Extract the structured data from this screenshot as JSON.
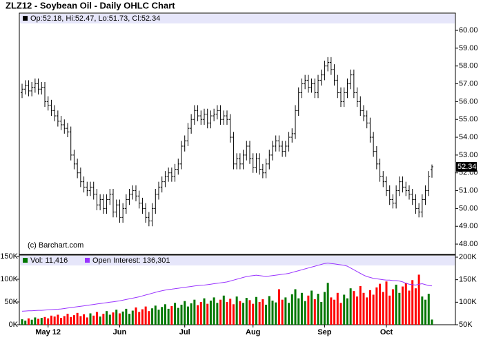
{
  "chart_data": [
    {
      "type": "ohlc",
      "title": "ZLZ12 - Soybean Oil - Daily OHLC Chart",
      "info": "Op:52.18, Hi:52.47, Lo:51.73, Cl:52.34",
      "copyright": "(c) Barchart.com",
      "last_label": "52.34",
      "color": "#000000",
      "categories": [
        null,
        null,
        null,
        null,
        null,
        null,
        null,
        null,
        "May 12",
        null,
        null,
        null,
        null,
        null,
        null,
        null,
        null,
        null,
        null,
        null,
        null,
        null,
        null,
        null,
        null,
        null,
        null,
        null,
        null,
        null,
        "Jun",
        null,
        null,
        null,
        null,
        null,
        null,
        null,
        null,
        null,
        null,
        null,
        null,
        null,
        null,
        null,
        null,
        null,
        null,
        null,
        "Jul",
        null,
        null,
        null,
        null,
        null,
        null,
        null,
        null,
        null,
        null,
        null,
        null,
        null,
        null,
        null,
        null,
        null,
        null,
        null,
        null,
        "Aug",
        null,
        null,
        null,
        null,
        null,
        null,
        null,
        null,
        null,
        null,
        null,
        null,
        null,
        null,
        null,
        null,
        null,
        null,
        null,
        null,
        null,
        "Sep",
        null,
        null,
        null,
        null,
        null,
        null,
        null,
        null,
        null,
        null,
        null,
        null,
        null,
        null,
        null,
        null,
        null,
        null,
        "Oct",
        null,
        null,
        null,
        null,
        null,
        null,
        null,
        null,
        null,
        null,
        null,
        null,
        null,
        null
      ],
      "open": [
        56.5,
        56.7,
        56.9,
        56.6,
        56.8,
        57.0,
        56.7,
        56.8,
        56.0,
        55.8,
        55.5,
        55.2,
        54.9,
        54.7,
        54.5,
        54.3,
        53.0,
        52.5,
        52.0,
        51.5,
        51.2,
        51.0,
        51.2,
        50.8,
        50.2,
        50.5,
        50.0,
        50.5,
        50.8,
        49.8,
        50.2,
        49.5,
        50.0,
        50.5,
        50.8,
        51.0,
        50.7,
        50.3,
        50.0,
        49.5,
        49.3,
        50.0,
        50.8,
        51.2,
        51.5,
        51.8,
        52.0,
        51.8,
        52.2,
        52.5,
        53.5,
        53.8,
        54.5,
        55.0,
        55.5,
        55.2,
        55.0,
        55.3,
        54.8,
        55.2,
        55.3,
        55.5,
        55.0,
        55.2,
        55.0,
        54.0,
        52.5,
        52.8,
        52.5,
        53.0,
        53.5,
        52.8,
        52.3,
        52.8,
        52.2,
        52.0,
        52.5,
        53.0,
        53.5,
        53.8,
        53.5,
        53.2,
        53.5,
        54.0,
        54.2,
        55.5,
        56.5,
        57.0,
        57.2,
        56.8,
        57.0,
        56.5,
        57.2,
        57.5,
        58.0,
        58.2,
        57.8,
        57.2,
        56.5,
        56.0,
        56.5,
        57.0,
        57.5,
        56.5,
        56.0,
        55.5,
        55.2,
        54.8,
        54.0,
        53.2,
        52.5,
        51.8,
        51.5,
        51.0,
        50.5,
        50.3,
        51.0,
        51.5,
        51.2,
        51.0,
        50.8,
        50.5,
        50.0,
        49.8,
        50.5,
        51.0,
        52.18
      ],
      "high": [
        57.0,
        57.2,
        57.2,
        57.1,
        57.3,
        57.3,
        57.1,
        57.1,
        56.3,
        56.1,
        55.8,
        55.5,
        55.2,
        55.0,
        54.8,
        54.6,
        53.3,
        52.8,
        52.3,
        51.8,
        51.5,
        51.5,
        51.5,
        51.1,
        50.8,
        50.8,
        50.8,
        51.1,
        51.1,
        50.5,
        50.5,
        50.3,
        50.8,
        51.1,
        51.3,
        51.3,
        51.0,
        50.6,
        50.3,
        49.8,
        50.3,
        51.1,
        51.5,
        51.8,
        52.1,
        52.3,
        52.3,
        52.5,
        52.8,
        53.8,
        54.1,
        54.8,
        55.3,
        55.8,
        55.8,
        55.5,
        55.6,
        55.6,
        55.5,
        55.6,
        55.8,
        55.8,
        55.5,
        55.5,
        55.3,
        54.3,
        53.1,
        53.1,
        53.3,
        53.8,
        53.8,
        53.1,
        53.1,
        53.1,
        52.5,
        52.8,
        53.3,
        53.8,
        54.1,
        54.1,
        53.8,
        53.8,
        54.3,
        54.5,
        55.8,
        56.8,
        57.3,
        57.5,
        57.5,
        57.3,
        57.3,
        57.5,
        57.8,
        58.3,
        58.5,
        58.5,
        58.1,
        57.5,
        56.8,
        56.8,
        57.3,
        57.8,
        57.8,
        56.8,
        56.3,
        55.8,
        55.5,
        55.1,
        54.3,
        53.5,
        52.8,
        52.1,
        51.8,
        51.3,
        50.8,
        51.3,
        51.8,
        51.8,
        51.5,
        51.3,
        51.1,
        50.8,
        50.3,
        50.8,
        51.3,
        52.1,
        52.47
      ],
      "low": [
        56.2,
        56.4,
        56.3,
        56.3,
        56.5,
        56.4,
        56.4,
        55.7,
        55.5,
        55.2,
        54.9,
        54.6,
        54.4,
        54.2,
        54.0,
        52.7,
        52.2,
        51.7,
        51.2,
        50.9,
        50.7,
        50.7,
        50.5,
        49.9,
        49.9,
        49.7,
        49.7,
        50.2,
        49.5,
        49.5,
        49.2,
        49.2,
        49.7,
        50.2,
        50.5,
        50.4,
        50.0,
        49.7,
        49.2,
        49.0,
        49.0,
        49.7,
        50.5,
        50.9,
        51.2,
        51.5,
        51.5,
        51.5,
        51.9,
        52.2,
        53.2,
        53.5,
        54.2,
        54.7,
        54.9,
        54.7,
        54.7,
        54.5,
        54.5,
        54.9,
        55.0,
        54.7,
        54.7,
        54.7,
        53.7,
        52.2,
        52.2,
        52.2,
        52.2,
        52.7,
        52.5,
        52.0,
        52.0,
        51.9,
        51.7,
        51.7,
        52.2,
        52.7,
        53.2,
        53.2,
        52.9,
        52.9,
        53.2,
        53.7,
        53.9,
        55.2,
        56.2,
        56.7,
        56.5,
        56.5,
        56.2,
        56.2,
        56.9,
        57.2,
        57.7,
        57.5,
        56.9,
        56.2,
        55.7,
        55.7,
        56.2,
        56.7,
        56.2,
        55.7,
        55.2,
        54.9,
        54.5,
        53.7,
        52.9,
        52.2,
        51.5,
        51.2,
        50.7,
        50.2,
        50.0,
        50.0,
        50.7,
        50.9,
        50.7,
        50.5,
        50.2,
        49.7,
        49.5,
        49.5,
        50.2,
        50.7,
        51.73
      ],
      "close": [
        56.7,
        56.9,
        56.6,
        56.8,
        57.0,
        56.7,
        56.8,
        56.0,
        55.8,
        55.5,
        55.2,
        54.9,
        54.7,
        54.5,
        54.3,
        53.0,
        52.5,
        52.0,
        51.5,
        51.2,
        51.0,
        51.2,
        50.8,
        50.2,
        50.5,
        50.0,
        50.5,
        50.8,
        49.8,
        50.2,
        49.5,
        50.0,
        50.5,
        50.8,
        51.0,
        50.7,
        50.3,
        50.0,
        49.5,
        49.3,
        50.0,
        50.8,
        51.2,
        51.5,
        51.8,
        52.0,
        51.8,
        52.2,
        52.5,
        53.5,
        53.8,
        54.5,
        55.0,
        55.5,
        55.2,
        55.0,
        55.3,
        54.8,
        55.2,
        55.3,
        55.5,
        55.0,
        55.2,
        55.0,
        54.0,
        52.5,
        52.8,
        52.5,
        53.0,
        53.5,
        52.8,
        52.3,
        52.8,
        52.2,
        52.0,
        52.5,
        53.0,
        53.5,
        53.8,
        53.5,
        53.2,
        53.5,
        54.0,
        54.2,
        55.5,
        56.5,
        57.0,
        57.2,
        56.8,
        57.0,
        56.5,
        57.2,
        57.5,
        58.0,
        58.2,
        57.8,
        57.2,
        56.5,
        56.0,
        56.5,
        57.0,
        57.5,
        56.5,
        56.0,
        55.5,
        55.2,
        54.8,
        54.0,
        53.2,
        52.5,
        51.8,
        51.5,
        51.0,
        50.5,
        50.3,
        51.0,
        51.5,
        51.2,
        51.0,
        50.8,
        50.5,
        50.0,
        49.8,
        50.5,
        51.0,
        51.8,
        52.34
      ],
      "ylim": [
        47.46,
        60.97
      ],
      "yticks": [
        {
          "value": 48,
          "label": "48.00"
        },
        {
          "value": 49,
          "label": "49.00"
        },
        {
          "value": 50,
          "label": "50.00"
        },
        {
          "value": 51,
          "label": "51.00"
        },
        {
          "value": 52,
          "label": "52.00"
        },
        {
          "value": 53,
          "label": "53.00"
        },
        {
          "value": 54,
          "label": "54.00"
        },
        {
          "value": 55,
          "label": "55.00"
        },
        {
          "value": 56,
          "label": "56.00"
        },
        {
          "value": 57,
          "label": "57.00"
        },
        {
          "value": 58,
          "label": "58.00"
        },
        {
          "value": 59,
          "label": "59.00"
        },
        {
          "value": 60,
          "label": "60.00"
        }
      ],
      "grid": false
    },
    {
      "type": "volume",
      "up_color": "#007700",
      "down_color": "#ff0000",
      "series": [
        {
          "name": "Vol: 11,416",
          "color": "#007700",
          "values": [
            12000,
            9000,
            14000,
            11000,
            16000,
            13000,
            15000,
            17000,
            14000,
            20000,
            18000,
            22000,
            15000,
            19000,
            24000,
            17000,
            21000,
            26000,
            19000,
            23000,
            16000,
            25000,
            20000,
            28000,
            18000,
            24000,
            30000,
            22000,
            27000,
            33000,
            25000,
            29000,
            35000,
            24000,
            31000,
            38000,
            28000,
            34000,
            40000,
            30000,
            36000,
            42000,
            33000,
            39000,
            45000,
            35000,
            41000,
            48000,
            37000,
            44000,
            52000,
            40000,
            47000,
            55000,
            43000,
            50000,
            58000,
            46000,
            53000,
            60000,
            48000,
            55000,
            64000,
            50000,
            57000,
            45000,
            62000,
            52000,
            48000,
            59000,
            54000,
            46000,
            61000,
            50000,
            56000,
            44000,
            63000,
            53000,
            49000,
            78000,
            55000,
            60000,
            48000,
            67000,
            78000,
            58000,
            70000,
            52000,
            64000,
            75000,
            56000,
            68000,
            50000,
            72000,
            92000,
            60000,
            55000,
            70000,
            48000,
            66000,
            58000,
            80000,
            74000,
            62000,
            85000,
            70000,
            60000,
            76000,
            66000,
            82000,
            90000,
            72000,
            95000,
            64000,
            78000,
            88000,
            70000,
            84000,
            92000,
            75000,
            98000,
            80000,
            110000,
            62000,
            55000,
            68000,
            11416
          ]
        },
        {
          "name": "Open Interest: 136,301",
          "color": "#9933ff",
          "axis": "y2",
          "values": [
            80000,
            80500,
            81000,
            81000,
            81500,
            82000,
            82000,
            82500,
            83000,
            83500,
            84000,
            84500,
            85000,
            86000,
            87000,
            88000,
            89000,
            90000,
            91000,
            92000,
            93000,
            94000,
            95000,
            96000,
            97000,
            98000,
            99000,
            100000,
            101000,
            102000,
            103000,
            104500,
            106000,
            107500,
            109000,
            110500,
            112000,
            114000,
            116000,
            118000,
            120000,
            122000,
            124000,
            125500,
            127000,
            128000,
            129000,
            130000,
            131000,
            132000,
            133000,
            134000,
            135000,
            136000,
            137000,
            137500,
            138000,
            139000,
            140000,
            141000,
            142000,
            143000,
            144000,
            145000,
            147000,
            149000,
            151000,
            153000,
            155000,
            157000,
            158000,
            159000,
            160000,
            159000,
            158000,
            157000,
            158000,
            159000,
            160000,
            161000,
            162000,
            163000,
            164000,
            166000,
            168000,
            170000,
            172000,
            174000,
            176000,
            178000,
            180000,
            182000,
            184000,
            186000,
            187000,
            186000,
            185000,
            184000,
            183000,
            182000,
            180000,
            176000,
            172000,
            168000,
            164000,
            160000,
            157000,
            155000,
            153000,
            152000,
            151000,
            150000,
            149000,
            149000,
            148000,
            148000,
            147000,
            145000,
            142000,
            140000,
            139000,
            138000,
            140000,
            141000,
            139000,
            137000,
            136301
          ]
        }
      ],
      "ylim": [
        0,
        153000
      ],
      "yticks": [
        {
          "value": 0,
          "label": "0K"
        },
        {
          "value": 50000,
          "label": "50K"
        },
        {
          "value": 100000,
          "label": "100K"
        },
        {
          "value": 150000,
          "label": "150K"
        }
      ],
      "y2lim": [
        50000,
        204600
      ],
      "y2ticks": [
        {
          "value": 50000,
          "label": "50K"
        },
        {
          "value": 100000,
          "label": "100K"
        },
        {
          "value": 150000,
          "label": "150K"
        },
        {
          "value": 200000,
          "label": "200K"
        }
      ]
    }
  ]
}
